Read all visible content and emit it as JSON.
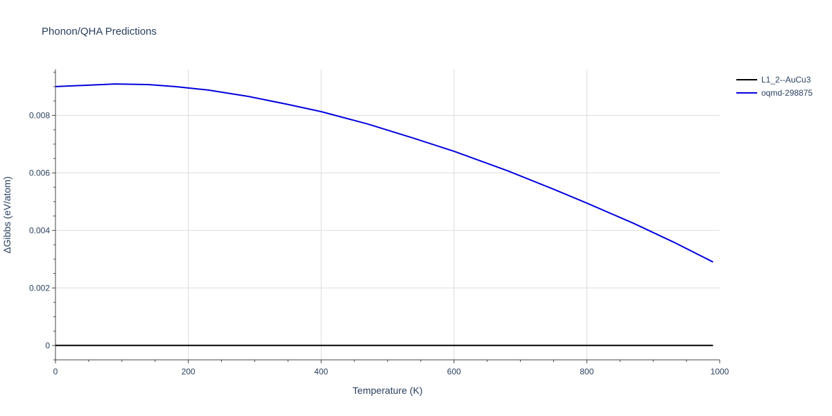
{
  "chart_data": {
    "type": "line",
    "title": "Phonon/QHA Predictions",
    "xlabel": "Temperature (K)",
    "ylabel": "ΔGibbs (eV/atom)",
    "xlim": [
      0,
      1000
    ],
    "ylim": [
      -0.0005,
      0.0096
    ],
    "x_ticks": [
      0,
      200,
      400,
      600,
      800,
      1000
    ],
    "x_tick_labels": [
      "0",
      "200",
      "400",
      "600",
      "800",
      "1000"
    ],
    "y_ticks": [
      0,
      0.002,
      0.004,
      0.006,
      0.008
    ],
    "y_tick_labels": [
      "0",
      "0.002",
      "0.004",
      "0.006",
      "0.008"
    ],
    "grid": true,
    "legend_position": "top-right",
    "series": [
      {
        "name": "L1_2--AuCu3",
        "color": "#000000",
        "x": [
          0,
          100,
          200,
          300,
          400,
          500,
          600,
          700,
          800,
          900,
          990
        ],
        "y": [
          0,
          0,
          0,
          0,
          0,
          0,
          0,
          0,
          0,
          0,
          0
        ]
      },
      {
        "name": "oqmd-298875",
        "color": "#0000dd",
        "x": [
          0,
          30,
          90,
          140,
          180,
          230,
          290,
          350,
          400,
          470,
          540,
          600,
          680,
          750,
          800,
          870,
          930,
          990
        ],
        "y": [
          0.009,
          0.00903,
          0.00909,
          0.00907,
          0.009,
          0.00888,
          0.00866,
          0.00838,
          0.00813,
          0.0077,
          0.0072,
          0.00675,
          0.00608,
          0.00543,
          0.00495,
          0.00425,
          0.0036,
          0.0029
        ]
      }
    ]
  }
}
